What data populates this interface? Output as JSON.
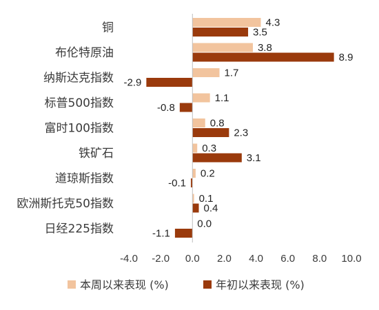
{
  "chart_data": {
    "type": "bar",
    "orientation": "horizontal",
    "categories": [
      "铜",
      "布伦特原油",
      "纳斯达克指数",
      "标普500指数",
      "富时100指数",
      "铁矿石",
      "道琼斯指数",
      "欧洲斯托克50指数",
      "日经225指数"
    ],
    "series": [
      {
        "name": "本周以来表现 (%)",
        "color": "#f2c49e",
        "values": [
          4.3,
          3.8,
          1.7,
          1.1,
          0.8,
          0.3,
          0.2,
          0.1,
          0.0
        ],
        "labels": [
          "4.3",
          "3.8",
          "1.7",
          "1.1",
          "0.8",
          "0.3",
          "0.2",
          "0.1",
          "0.0"
        ]
      },
      {
        "name": "年初以来表现 (%)",
        "color": "#9a3a0c",
        "values": [
          3.5,
          8.9,
          -2.9,
          -0.8,
          2.3,
          3.1,
          -0.1,
          0.4,
          -1.1
        ],
        "labels": [
          "3.5",
          "8.9",
          "-2.9",
          "-0.8",
          "2.3",
          "3.1",
          "-0.1",
          "0.4",
          "-1.1"
        ]
      }
    ],
    "x_ticks": [
      "-4.0",
      "-2.0",
      "0.0",
      "2.0",
      "4.0",
      "6.0",
      "8.0",
      "10.0"
    ],
    "xlim": [
      -4,
      10
    ],
    "grid": false,
    "legend_position": "bottom"
  }
}
